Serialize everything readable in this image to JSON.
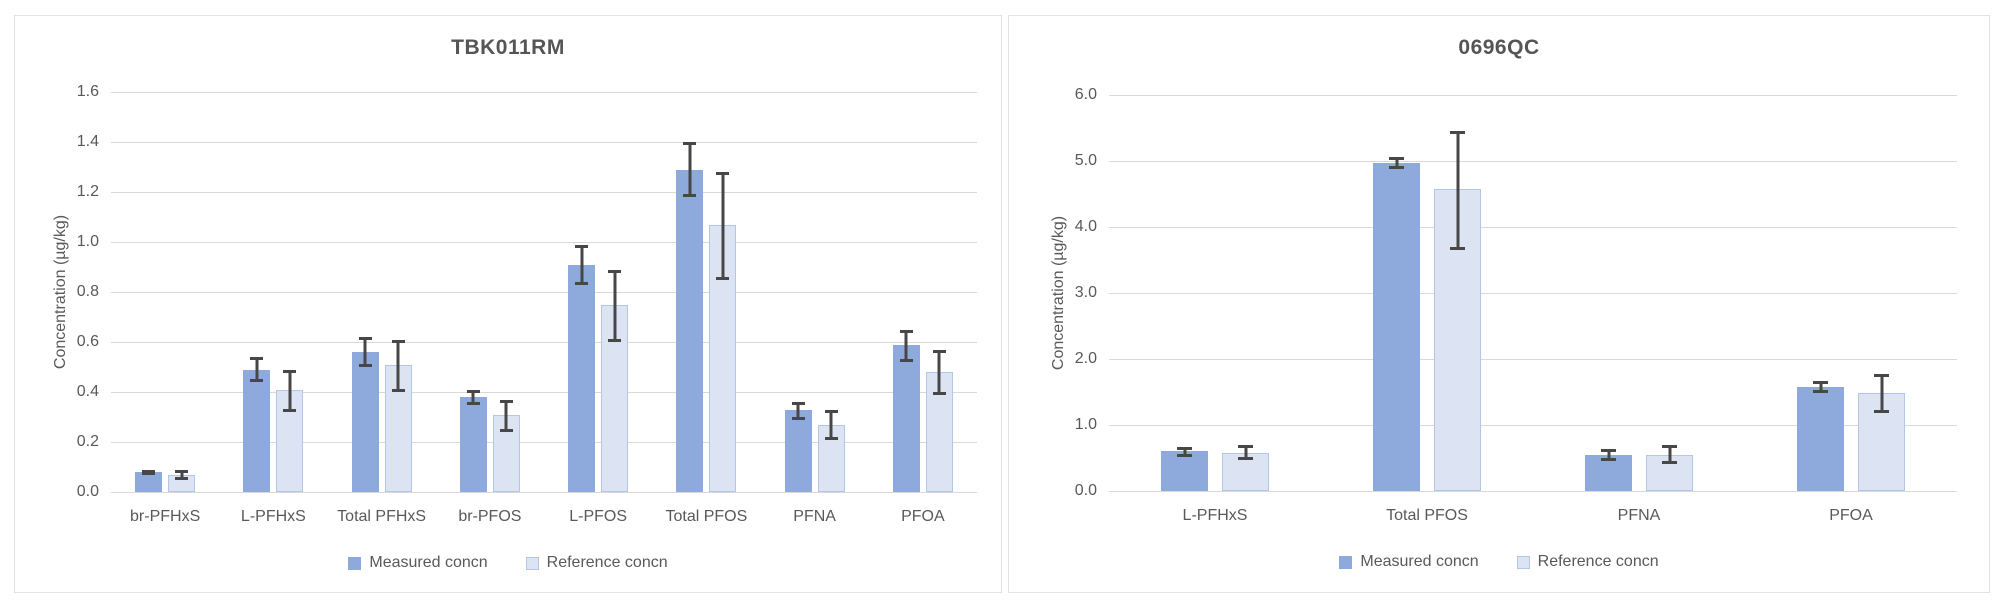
{
  "colors": {
    "measured_fill": "#8EA9DB",
    "reference_fill": "#DCE4F3",
    "reference_border": "#B4C6E7",
    "error_bar": "#474747",
    "gridline": "#d9d9d9",
    "text": "#595959",
    "title": "#555555"
  },
  "chart_data": [
    {
      "type": "bar",
      "title": "TBK011RM",
      "ylabel": "Concentration (µg/kg)",
      "xlabel": "",
      "ylim": [
        0,
        1.6
      ],
      "ytick_step": 0.2,
      "grid": "horizontal",
      "legend_position": "bottom",
      "categories": [
        "br-PFHxS",
        "L-PFHxS",
        "Total PFHxS",
        "br-PFOS",
        "L-PFOS",
        "Total PFOS",
        "PFNA",
        "PFOA"
      ],
      "series": [
        {
          "name": "Measured concn",
          "color": "#8EA9DB",
          "border": "",
          "values": [
            0.08,
            0.49,
            0.56,
            0.38,
            0.91,
            1.29,
            0.33,
            0.59
          ],
          "err_low": [
            0.07,
            0.44,
            0.5,
            0.35,
            0.83,
            1.18,
            0.29,
            0.52
          ],
          "err_high": [
            0.09,
            0.54,
            0.62,
            0.41,
            0.99,
            1.4,
            0.36,
            0.65
          ]
        },
        {
          "name": "Reference concn",
          "color": "#DCE4F3",
          "border": "#B4C6E7",
          "values": [
            0.07,
            0.41,
            0.51,
            0.31,
            0.75,
            1.07,
            0.27,
            0.48
          ],
          "err_low": [
            0.05,
            0.32,
            0.4,
            0.24,
            0.6,
            0.85,
            0.21,
            0.39
          ],
          "err_high": [
            0.09,
            0.49,
            0.61,
            0.37,
            0.89,
            1.28,
            0.33,
            0.57
          ]
        }
      ]
    },
    {
      "type": "bar",
      "title": "0696QC",
      "ylabel": "Concentration (µg/kg)",
      "xlabel": "",
      "ylim": [
        0,
        6.0
      ],
      "ytick_step": 1.0,
      "grid": "horizontal",
      "legend_position": "bottom",
      "categories": [
        "L-PFHxS",
        "Total PFOS",
        "PFNA",
        "PFOA"
      ],
      "series": [
        {
          "name": "Measured concn",
          "color": "#8EA9DB",
          "border": "",
          "values": [
            0.6,
            4.97,
            0.55,
            1.58
          ],
          "err_low": [
            0.52,
            4.88,
            0.46,
            1.49
          ],
          "err_high": [
            0.67,
            5.06,
            0.63,
            1.67
          ]
        },
        {
          "name": "Reference concn",
          "color": "#DCE4F3",
          "border": "#B4C6E7",
          "values": [
            0.58,
            4.57,
            0.55,
            1.48
          ],
          "err_low": [
            0.47,
            3.65,
            0.41,
            1.18
          ],
          "err_high": [
            0.7,
            5.46,
            0.69,
            1.78
          ]
        }
      ]
    }
  ]
}
